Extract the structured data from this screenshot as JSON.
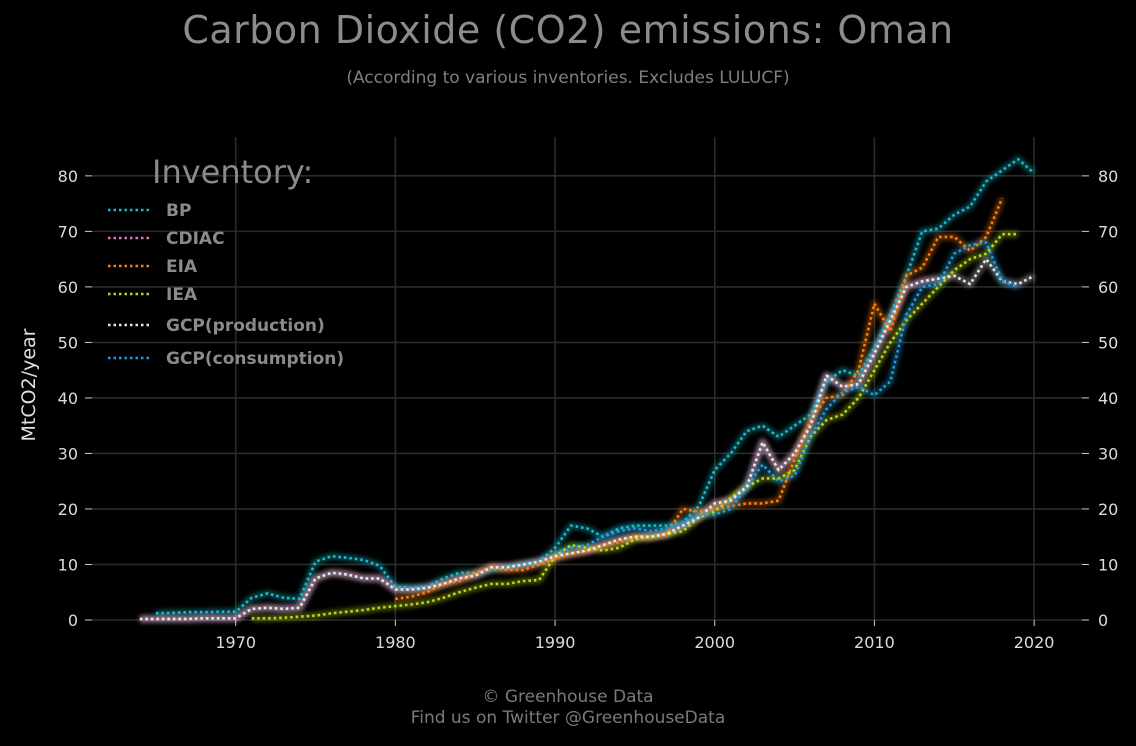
{
  "header": {
    "title": "Carbon Dioxide (CO2) emissions: Oman",
    "subtitle": "(According to various inventories. Excludes LULUCF)"
  },
  "footer": {
    "line1": "© Greenhouse Data",
    "line2": "Find us on Twitter @GreenhouseData"
  },
  "chart_data": {
    "type": "line",
    "title": "Carbon Dioxide (CO2) emissions: Oman",
    "subtitle": "(According to various inventories. Excludes LULUCF)",
    "ylabel": "MtCO2/year",
    "xlabel": "",
    "xlim": [
      1961,
      2023
    ],
    "ylim": [
      0,
      87
    ],
    "x_ticks": [
      1970,
      1980,
      1990,
      2000,
      2010,
      2020
    ],
    "y_ticks": [
      0,
      10,
      20,
      30,
      40,
      50,
      60,
      70,
      80
    ],
    "grid": true,
    "legend_title": "Inventory:",
    "legend_position": "top-left",
    "series": [
      {
        "name": "BP",
        "color": "#17becf",
        "x": [
          1965,
          1966,
          1967,
          1968,
          1969,
          1970,
          1971,
          1972,
          1973,
          1974,
          1975,
          1976,
          1977,
          1978,
          1979,
          1980,
          1981,
          1982,
          1983,
          1984,
          1985,
          1986,
          1987,
          1988,
          1989,
          1990,
          1991,
          1992,
          1993,
          1994,
          1995,
          1996,
          1997,
          1998,
          1999,
          2000,
          2001,
          2002,
          2003,
          2004,
          2005,
          2006,
          2007,
          2008,
          2009,
          2010,
          2011,
          2012,
          2013,
          2014,
          2015,
          2016,
          2017,
          2018,
          2019,
          2020
        ],
        "y": [
          1.2,
          1.3,
          1.4,
          1.4,
          1.5,
          1.5,
          4.0,
          4.8,
          4.0,
          3.8,
          10.5,
          11.5,
          11.2,
          10.8,
          9.8,
          6.0,
          5.8,
          6.0,
          7.5,
          8.5,
          8.5,
          9.0,
          9.5,
          10.0,
          10.5,
          13.0,
          17.0,
          16.5,
          15.0,
          16.5,
          17.0,
          17.0,
          17.0,
          17.5,
          20.5,
          27.0,
          30.0,
          34.0,
          35.0,
          33.0,
          35.0,
          37.0,
          43.0,
          45.0,
          44.0,
          49.0,
          55.0,
          62.0,
          70.0,
          70.5,
          73.0,
          74.5,
          79.0,
          81.0,
          83.0,
          80.5
        ]
      },
      {
        "name": "CDIAC",
        "color": "#e377c2",
        "x": [
          1964,
          1965,
          1966,
          1967,
          1968,
          1969,
          1970,
          1971,
          1972,
          1973,
          1974,
          1975,
          1976,
          1977,
          1978,
          1979,
          1980,
          1981,
          1982,
          1983,
          1984,
          1985,
          1986,
          1987,
          1988,
          1989,
          1990,
          1991,
          1992,
          1993,
          1994,
          1995,
          1996,
          1997,
          1998,
          1999,
          2000,
          2001,
          2002,
          2003,
          2004,
          2005,
          2006,
          2007,
          2008,
          2009,
          2010,
          2011,
          2012,
          2013,
          2014
        ],
        "y": [
          0.2,
          0.2,
          0.2,
          0.2,
          0.3,
          0.3,
          0.3,
          2.0,
          2.2,
          2.0,
          2.2,
          7.5,
          8.5,
          8.2,
          7.5,
          7.5,
          5.5,
          5.5,
          5.8,
          6.5,
          7.5,
          8.0,
          9.5,
          9.5,
          10.0,
          10.5,
          11.5,
          12.0,
          12.5,
          13.5,
          14.5,
          15.0,
          15.0,
          15.5,
          17.0,
          18.5,
          21.0,
          21.5,
          24.0,
          32.0,
          27.0,
          30.0,
          35.0,
          44.0,
          42.0,
          42.5,
          48.0,
          54.0,
          60.0,
          61.0,
          61.5
        ]
      },
      {
        "name": "EIA",
        "color": "#ff7f0e",
        "x": [
          1980,
          1981,
          1982,
          1983,
          1984,
          1985,
          1986,
          1987,
          1988,
          1989,
          1990,
          1991,
          1992,
          1993,
          1994,
          1995,
          1996,
          1997,
          1998,
          1999,
          2000,
          2001,
          2002,
          2003,
          2004,
          2005,
          2006,
          2007,
          2008,
          2009,
          2010,
          2011,
          2012,
          2013,
          2014,
          2015,
          2016,
          2017,
          2018
        ],
        "y": [
          3.8,
          4.2,
          5.0,
          6.5,
          7.0,
          8.5,
          9.5,
          9.0,
          9.0,
          10.0,
          11.0,
          12.0,
          12.5,
          13.5,
          14.0,
          15.0,
          15.0,
          15.5,
          20.0,
          19.5,
          20.0,
          20.5,
          21.0,
          21.0,
          21.5,
          29.0,
          36.0,
          40.0,
          40.5,
          45.0,
          57.0,
          52.0,
          62.0,
          63.5,
          69.0,
          69.0,
          66.5,
          69.0,
          76.0
        ]
      },
      {
        "name": "IEA",
        "color": "#bcd916",
        "x": [
          1971,
          1972,
          1973,
          1974,
          1975,
          1976,
          1977,
          1978,
          1979,
          1980,
          1981,
          1982,
          1983,
          1984,
          1985,
          1986,
          1987,
          1988,
          1989,
          1990,
          1991,
          1992,
          1993,
          1994,
          1995,
          1996,
          1997,
          1998,
          1999,
          2000,
          2001,
          2002,
          2003,
          2004,
          2005,
          2006,
          2007,
          2008,
          2009,
          2010,
          2011,
          2012,
          2013,
          2014,
          2015,
          2016,
          2017,
          2018,
          2019
        ],
        "y": [
          0.3,
          0.3,
          0.4,
          0.6,
          0.8,
          1.2,
          1.5,
          1.8,
          2.2,
          2.5,
          2.8,
          3.2,
          4.0,
          5.0,
          5.8,
          6.5,
          6.5,
          7.0,
          7.2,
          11.5,
          13.5,
          13.0,
          12.5,
          13.0,
          14.5,
          15.0,
          15.5,
          16.0,
          18.5,
          19.5,
          22.0,
          24.0,
          25.5,
          25.5,
          27.0,
          33.0,
          36.0,
          37.0,
          40.0,
          45.0,
          50.0,
          54.0,
          57.0,
          60.0,
          63.0,
          65.0,
          66.0,
          69.5,
          69.5
        ]
      },
      {
        "name": "GCP(production)",
        "color": "#e8e8e8",
        "x": [
          1964,
          1965,
          1966,
          1967,
          1968,
          1969,
          1970,
          1971,
          1972,
          1973,
          1974,
          1975,
          1976,
          1977,
          1978,
          1979,
          1980,
          1981,
          1982,
          1983,
          1984,
          1985,
          1986,
          1987,
          1988,
          1989,
          1990,
          1991,
          1992,
          1993,
          1994,
          1995,
          1996,
          1997,
          1998,
          1999,
          2000,
          2001,
          2002,
          2003,
          2004,
          2005,
          2006,
          2007,
          2008,
          2009,
          2010,
          2011,
          2012,
          2013,
          2014,
          2015,
          2016,
          2017,
          2018,
          2019,
          2020
        ],
        "y": [
          0.2,
          0.2,
          0.2,
          0.2,
          0.3,
          0.3,
          0.3,
          2.0,
          2.2,
          2.0,
          2.2,
          7.5,
          8.5,
          8.2,
          7.5,
          7.5,
          5.5,
          5.5,
          5.8,
          6.5,
          7.5,
          8.0,
          9.5,
          9.5,
          10.0,
          10.5,
          11.5,
          12.0,
          12.5,
          13.5,
          14.5,
          15.0,
          15.0,
          15.5,
          17.0,
          18.5,
          21.0,
          21.5,
          24.0,
          32.0,
          27.0,
          30.0,
          35.0,
          44.0,
          42.0,
          42.5,
          48.0,
          54.0,
          60.0,
          61.0,
          61.5,
          62.0,
          60.5,
          65.0,
          61.0,
          60.5,
          62.0
        ]
      },
      {
        "name": "GCP(consumption)",
        "color": "#1f9fdf",
        "x": [
          1990,
          1991,
          1992,
          1993,
          1994,
          1995,
          1996,
          1997,
          1998,
          1999,
          2000,
          2001,
          2002,
          2003,
          2004,
          2005,
          2006,
          2007,
          2008,
          2009,
          2010,
          2011,
          2012,
          2013,
          2014,
          2015,
          2016,
          2017,
          2018,
          2019
        ],
        "y": [
          12.0,
          13.0,
          13.5,
          15.0,
          16.0,
          16.5,
          16.0,
          16.5,
          17.5,
          19.0,
          19.0,
          20.0,
          24.0,
          28.0,
          25.0,
          26.0,
          33.0,
          38.0,
          41.0,
          42.0,
          40.5,
          43.0,
          55.0,
          60.0,
          60.5,
          66.0,
          67.5,
          68.0,
          61.0,
          60.0
        ]
      }
    ]
  }
}
